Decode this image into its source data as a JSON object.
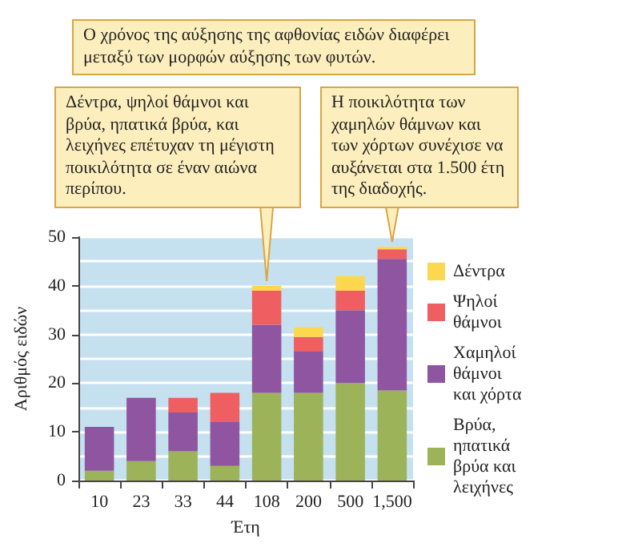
{
  "chart_data": {
    "type": "bar",
    "stacked": true,
    "xlabel": "Έτη",
    "ylabel": "Αριθμός ειδών",
    "categories": [
      "10",
      "23",
      "33",
      "44",
      "108",
      "200",
      "500",
      "1,500"
    ],
    "series": [
      {
        "name": "Βρύα, ηπατικά βρύα και λειχήνες",
        "color": "#9cb35a",
        "values": [
          2,
          4,
          6,
          3,
          18,
          18,
          20,
          18.5
        ]
      },
      {
        "name": "Χαμηλοί θάμνοι και χόρτα",
        "color": "#8f55a0",
        "values": [
          9,
          13,
          8,
          9,
          14,
          8.5,
          15,
          27
        ]
      },
      {
        "name": "Ψηλοί θάμνοι",
        "color": "#ef5f62",
        "values": [
          0,
          0,
          3,
          6,
          7,
          3,
          4,
          2
        ]
      },
      {
        "name": "Δέντρα",
        "color": "#fdd84e",
        "values": [
          0,
          0,
          0,
          0,
          1,
          2,
          3,
          0.5
        ]
      }
    ],
    "ylim": [
      0,
      50
    ],
    "yticks": [
      0,
      10,
      20,
      30,
      40,
      50
    ],
    "grid": "y",
    "legend": "right",
    "annotations": [
      "Ο χρόνος της αύξησης της αφθονίας ειδών διαφέρει μεταξύ των μορφών αύξησης των φυτών.",
      {
        "text": "Δέντρα, ψηλοί θάμνοι και βρύα, ηπατικά βρύα, και λειχήνες επέτυχαν τη μέγιστη ποικιλότητα σε έναν αιώνα περίπου.",
        "x": "108",
        "y": 40
      },
      {
        "text": "Η ποικιλότητα των χαμηλών θάμνων και των χόρτων συνέχισε να αυξάνεται στα 1.500 έτη της διαδοχής.",
        "x": "1,500",
        "y": 48
      }
    ]
  }
}
